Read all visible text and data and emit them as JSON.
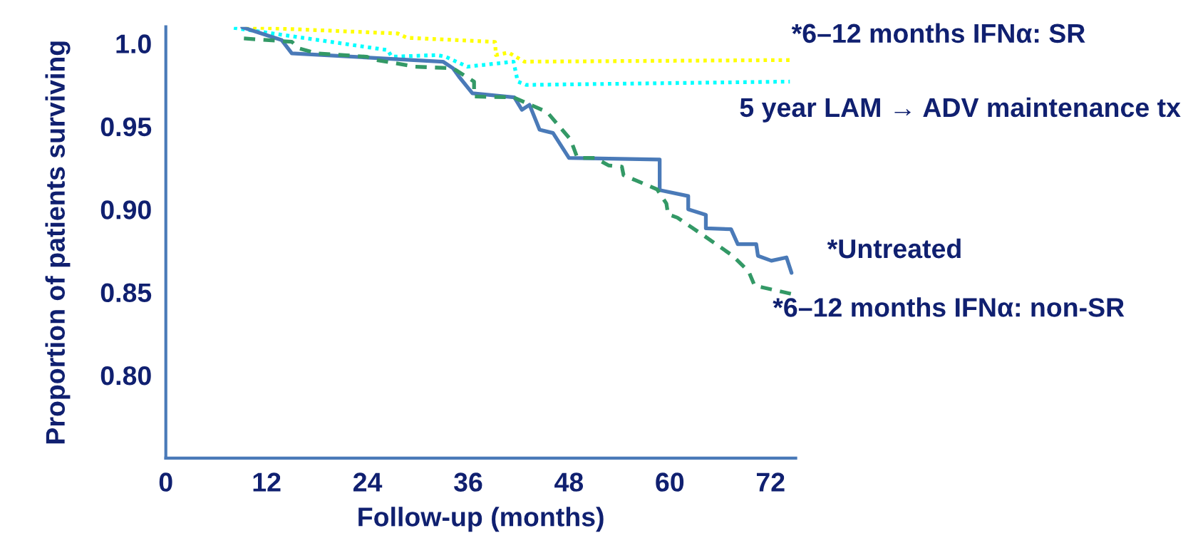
{
  "chart_data": {
    "type": "line",
    "xlabel": "Follow-up (months)",
    "ylabel": "Proportion of patients surviving",
    "xlim": [
      0,
      75
    ],
    "xticks": [
      0,
      12,
      24,
      36,
      48,
      60,
      72
    ],
    "ylim": [
      0.75,
      1.01
    ],
    "yticks": [
      {
        "value": 1.0,
        "label": "1.0"
      },
      0.95,
      {
        "value": 0.9,
        "label": "0.90"
      },
      0.85,
      {
        "value": 0.8,
        "label": "0.80"
      }
    ],
    "grid": false,
    "legend": false,
    "marker": "none",
    "series": [
      {
        "name": "*6–12 months IFNα: SR",
        "color": "#ffff00",
        "line_style": "dotted",
        "x": [
          9.5,
          27.6,
          28.7,
          39.2,
          39.3,
          40.8,
          42.7,
          74.5
        ],
        "values": [
          1.0098,
          1.006,
          1.0034,
          1.0009,
          0.993,
          0.9945,
          0.989,
          0.99
        ]
      },
      {
        "name": "5 year LAM → ADV maintenance tx",
        "color": "#00ffff",
        "line_style": "dotted",
        "x": [
          8.1,
          26.4,
          26.9,
          32.3,
          33.3,
          35.9,
          41.4,
          41.9,
          42.9,
          74.3
        ],
        "values": [
          1.0094,
          0.996,
          0.992,
          0.993,
          0.992,
          0.986,
          0.989,
          0.977,
          0.975,
          0.977
        ]
      },
      {
        "name": "*Untreated",
        "color": "#4a7ab8",
        "line_style": "solid",
        "x": [
          9.1,
          13.8,
          15.0,
          33.0,
          34.2,
          34.9,
          36.5,
          41.5,
          42.4,
          43.3,
          44.5,
          46.1,
          48.0,
          58.8,
          58.8,
          62.2,
          62.2,
          64.3,
          64.3,
          67.3,
          68.1,
          70.3,
          70.5,
          72.1,
          73.9,
          74.5
        ],
        "values": [
          1.0098,
          1.002,
          0.994,
          0.989,
          0.985,
          0.98,
          0.97,
          0.9675,
          0.96,
          0.963,
          0.948,
          0.946,
          0.931,
          0.93,
          0.9116,
          0.908,
          0.9,
          0.8967,
          0.8886,
          0.888,
          0.879,
          0.879,
          0.872,
          0.869,
          0.871,
          0.8617
        ]
      },
      {
        "name": "*6–12 months IFNα: non-SR",
        "color": "#339966",
        "line_style": "dashed",
        "x": [
          9.3,
          15.0,
          15.9,
          18.0,
          23.9,
          25.1,
          29.7,
          34.2,
          36.7,
          36.7,
          41.4,
          45.4,
          48.2,
          49.0,
          51.1,
          52.7,
          54.3,
          54.5,
          58.5,
          59.6,
          59.8,
          60.9,
          64.1,
          67.5,
          69.4,
          70.1,
          74.5
        ],
        "values": [
          1.003,
          1.001,
          0.997,
          0.994,
          0.992,
          0.99,
          0.986,
          0.985,
          0.977,
          0.968,
          0.9675,
          0.9586,
          0.942,
          0.931,
          0.931,
          0.9265,
          0.9257,
          0.9206,
          0.912,
          0.9035,
          0.897,
          0.895,
          0.884,
          0.872,
          0.8625,
          0.854,
          0.849
        ]
      }
    ]
  }
}
